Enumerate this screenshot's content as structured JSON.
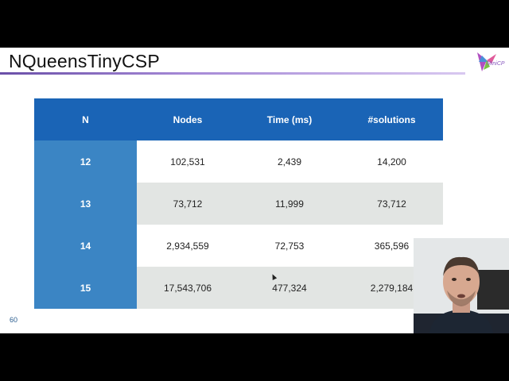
{
  "slide": {
    "title": "NQueensTinyCSP",
    "logo_text": "MiniCP",
    "page_number": "60"
  },
  "table": {
    "headers": [
      "N",
      "Nodes",
      "Time (ms)",
      "#solutions"
    ],
    "rows": [
      {
        "n": "12",
        "nodes": "102,531",
        "time": "2,439",
        "solutions": "14,200"
      },
      {
        "n": "13",
        "nodes": "73,712",
        "time": "11,999",
        "solutions": "73,712"
      },
      {
        "n": "14",
        "nodes": "2,934,559",
        "time": "72,753",
        "solutions": "365,596"
      },
      {
        "n": "15",
        "nodes": "17,543,706",
        "time": "477,324",
        "solutions": "2,279,184"
      }
    ]
  },
  "colors": {
    "header_bg": "#1a64b6",
    "n_column_bg": "#3b85c4",
    "alt_row_bg": "#e2e5e3",
    "title_rule": "#6a4fa8"
  },
  "icons": {
    "logo": "hummingbird-logo-icon",
    "cursor": "mouse-pointer-icon"
  }
}
